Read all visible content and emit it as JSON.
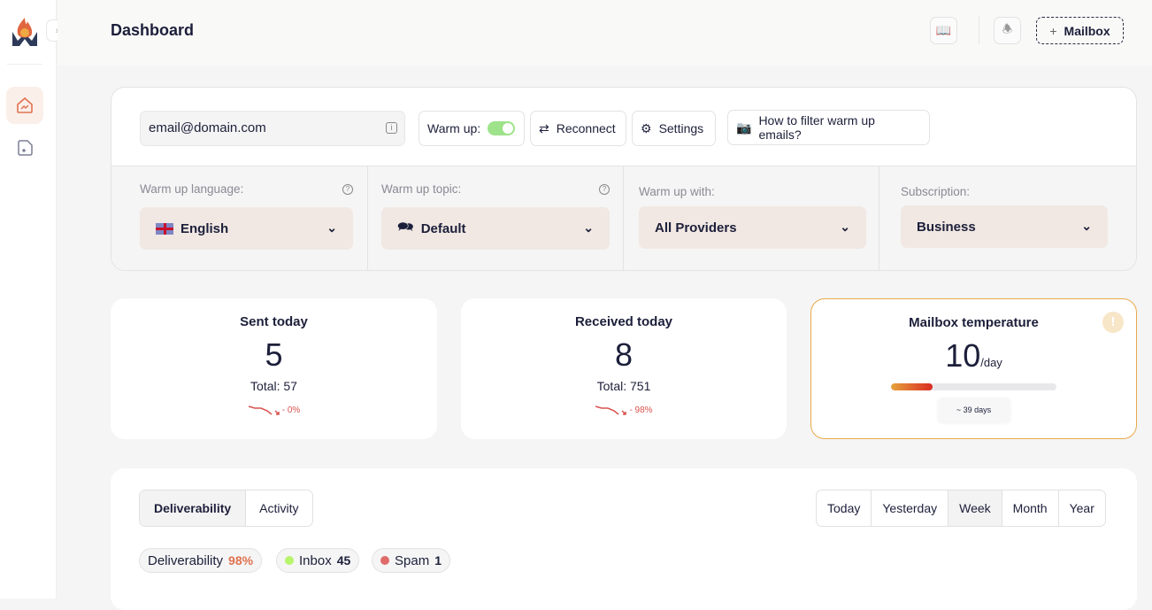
{
  "header": {
    "title": "Dashboard",
    "add_mailbox": "Mailbox",
    "add_icon": "+"
  },
  "sidebar": {
    "items": [
      {
        "name": "dashboard",
        "icon": "home-chart-icon",
        "active": true
      },
      {
        "name": "add-mailbox",
        "icon": "note-plus-icon",
        "active": false
      }
    ]
  },
  "mailbox": {
    "email": "email@domain.com",
    "warmup_label": "Warm up:",
    "warmup_on": true,
    "reconnect": "Reconnect",
    "settings": "Settings",
    "filter_help": "How to filter warm up emails?"
  },
  "settings": {
    "language": {
      "label": "Warm up language:",
      "value": "English"
    },
    "topic": {
      "label": "Warm up topic:",
      "value": "Default"
    },
    "with": {
      "label": "Warm up with:",
      "value": "All Providers"
    },
    "subscription": {
      "label": "Subscription:",
      "value": "Business"
    }
  },
  "stats": {
    "sent": {
      "title": "Sent today",
      "value": "5",
      "total": "Total: 57",
      "trend": "- 0%"
    },
    "received": {
      "title": "Received today",
      "value": "8",
      "total": "Total: 751",
      "trend": "- 98%"
    },
    "temperature": {
      "title": "Mailbox temperature",
      "value": "10",
      "unit": "/day",
      "progress": 0.25,
      "days": "~ 39 days"
    }
  },
  "analytics": {
    "tabs": [
      "Deliverability",
      "Activity"
    ],
    "active_tab": "Deliverability",
    "ranges": [
      "Today",
      "Yesterday",
      "Week",
      "Month",
      "Year"
    ],
    "active_range": "Week",
    "pills": {
      "deliverability": {
        "label": "Deliverability",
        "value": "98%"
      },
      "inbox": {
        "label": "Inbox",
        "value": "45"
      },
      "spam": {
        "label": "Spam",
        "value": "1"
      }
    }
  },
  "colors": {
    "accent": "#e0724f",
    "inbox": "#b7f56b",
    "spam": "#e06a6a",
    "temperature_border": "#e8a94b"
  }
}
